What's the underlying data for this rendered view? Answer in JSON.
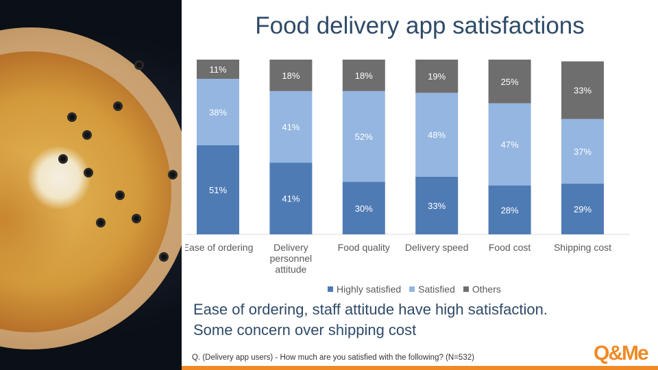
{
  "title": "Food delivery app satisfactions",
  "summary": {
    "line1": "Ease of ordering, staff attitude have high satisfaction.",
    "line2": "Some concern over shipping cost"
  },
  "footnote": "Q. (Delivery  app users) - How much are you satisfied with the following? (N=532)",
  "logo": {
    "text": "Q&Me",
    "color": "#f08a24"
  },
  "colors": {
    "highly_satisfied": "#4f7bb5",
    "satisfied": "#94b6e0",
    "others": "#6e6e6e",
    "title": "#2e4a68"
  },
  "chart_data": {
    "type": "bar",
    "stacked": true,
    "categories": [
      [
        "Ease of ordering"
      ],
      [
        "Delivery",
        "personnel",
        "attitude"
      ],
      [
        "Food quality"
      ],
      [
        "Delivery speed"
      ],
      [
        "Food cost"
      ],
      [
        "Shipping cost"
      ]
    ],
    "series": [
      {
        "name": "Highly satisfied",
        "color": "#4f7bb5",
        "values": [
          51,
          41,
          30,
          33,
          28,
          29
        ],
        "labels": [
          "51%",
          "41%",
          "30%",
          "33%",
          "28%",
          "29%"
        ]
      },
      {
        "name": "Satisfied",
        "color": "#94b6e0",
        "values": [
          38,
          41,
          52,
          48,
          47,
          37
        ],
        "labels": [
          "38%",
          "41%",
          "52%",
          "48%",
          "47%",
          "37%"
        ]
      },
      {
        "name": "Others",
        "color": "#6e6e6e",
        "values": [
          11,
          18,
          18,
          19,
          25,
          33
        ],
        "labels": [
          "11%",
          "18%",
          "18%",
          "19%",
          "25%",
          "33%"
        ]
      }
    ],
    "ylim": [
      0,
      100
    ],
    "grid": false,
    "legend_position": "bottom",
    "xlabel": "",
    "ylabel": ""
  }
}
